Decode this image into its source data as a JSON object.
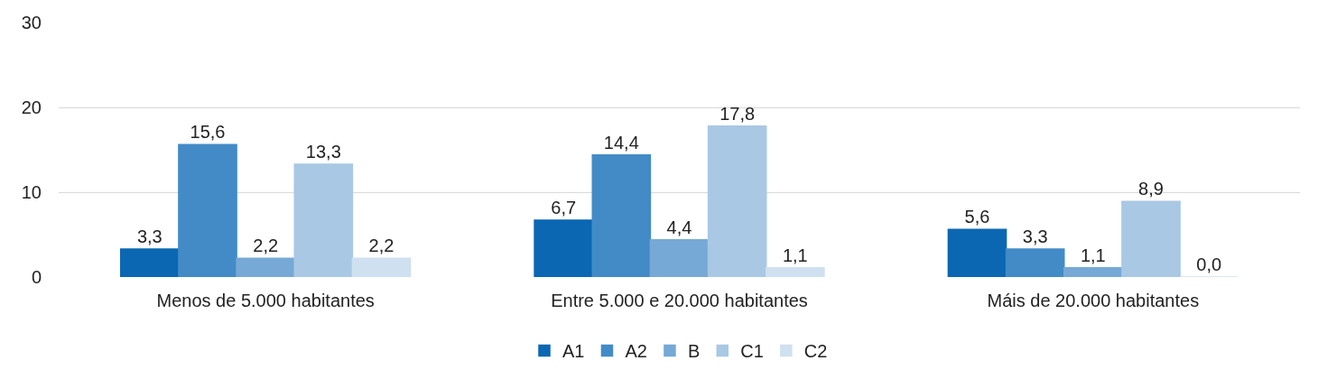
{
  "chart_data": {
    "type": "bar",
    "categories": [
      "Menos de 5.000 habitantes",
      "Entre 5.000 e 20.000 habitantes",
      "Máis de 20.000 habitantes"
    ],
    "series": [
      {
        "name": "A1",
        "color": "#0b67b2",
        "values": [
          3.3,
          6.7,
          5.6
        ],
        "value_labels": [
          "3,3",
          "6,7",
          "5,6"
        ]
      },
      {
        "name": "A2",
        "color": "#428bc7",
        "values": [
          15.6,
          14.4,
          3.3
        ],
        "value_labels": [
          "15,6",
          "14,4",
          "3,3"
        ]
      },
      {
        "name": "B",
        "color": "#76a9d6",
        "values": [
          2.2,
          4.4,
          1.1
        ],
        "value_labels": [
          "2,2",
          "4,4",
          "1,1"
        ]
      },
      {
        "name": "C1",
        "color": "#a9c8e4",
        "values": [
          13.3,
          17.8,
          8.9
        ],
        "value_labels": [
          "13,3",
          "17,8",
          "8,9"
        ]
      },
      {
        "name": "C2",
        "color": "#cfe0f0",
        "values": [
          2.2,
          1.1,
          0.0
        ],
        "value_labels": [
          "2,2",
          "1,1",
          "0,0"
        ]
      }
    ],
    "ylim": [
      0,
      30
    ],
    "yticks": [
      0,
      10,
      20,
      30
    ],
    "grid": "y",
    "legend": "bottom"
  }
}
